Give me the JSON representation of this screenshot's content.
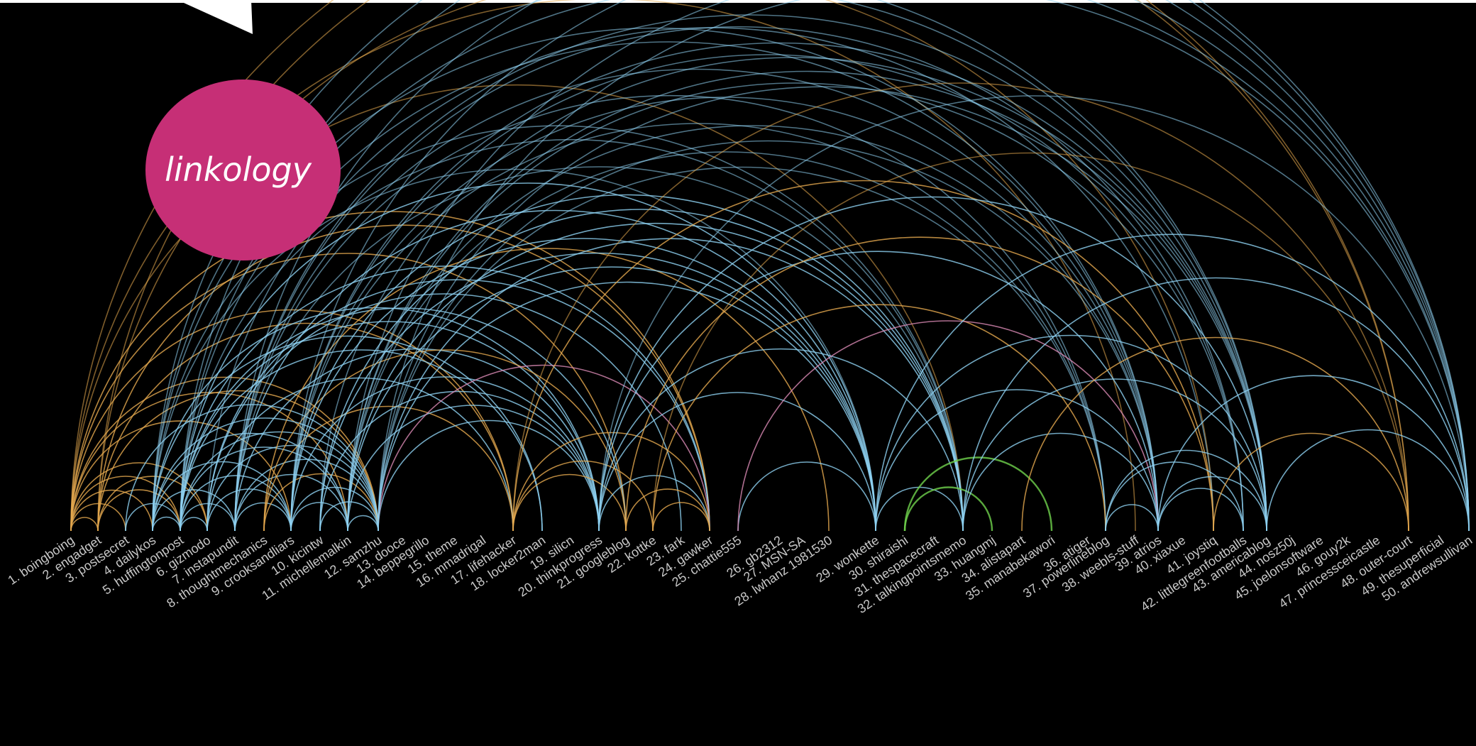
{
  "brand": {
    "name": "linkology",
    "color": "#c62f76"
  },
  "colors": {
    "background": "#000000",
    "blue": "#8fd2f2",
    "orange": "#e5a94f",
    "pink": "#d98ab4",
    "green": "#6fd24c",
    "label": "#c8c8c8"
  },
  "sites": [
    "1. boingboing",
    "2. engadget",
    "3. postsecret",
    "4. dailykos",
    "5. huffingtonpost",
    "6. gizmodo",
    "7. instapundit",
    "8. thoughtmechanics",
    "9. crooksandliars",
    "10. kicintw",
    "11. michellemalkin",
    "12. samzhu",
    "13. dooce",
    "14. beppegrillo",
    "15. theme",
    "16. mmadrigal",
    "17. lifehacker",
    "18. locker2man",
    "19. silicn",
    "20. thinkprogress",
    "21. googleblog",
    "22. kottke",
    "23. fark",
    "24. gawker",
    "25. chattie555",
    "26. gb2312",
    "27. MSN-SA",
    "28. lwhanz 1981530",
    "29. wonkette",
    "30. shiraishi",
    "31. thespacecraft",
    "32. talkingpointsmemo",
    "33. huangmj",
    "34. alistapart",
    "35. manabekawori",
    "36. atiger",
    "37. powerlineblog",
    "38. weebls-stuff",
    "39. atrios",
    "40. xiaxue",
    "41. joystiq",
    "42. littlegreenfootballs",
    "43. americablog",
    "44. nosz50j",
    "45. joelonsoftware",
    "46. gouy2k",
    "47. princessceicastle",
    "48. outer-court",
    "49. thesuperficial",
    "50. andrewsullivan"
  ],
  "links": [
    [
      1,
      2,
      "o"
    ],
    [
      1,
      3,
      "o"
    ],
    [
      1,
      4,
      "o"
    ],
    [
      1,
      5,
      "o"
    ],
    [
      1,
      6,
      "o"
    ],
    [
      1,
      9,
      "o"
    ],
    [
      1,
      11,
      "o"
    ],
    [
      1,
      12,
      "o"
    ],
    [
      1,
      17,
      "o"
    ],
    [
      1,
      21,
      "o"
    ],
    [
      1,
      24,
      "o"
    ],
    [
      1,
      32,
      "o"
    ],
    [
      1,
      38,
      "o"
    ],
    [
      1,
      48,
      "o"
    ],
    [
      2,
      5,
      "o"
    ],
    [
      2,
      6,
      "o"
    ],
    [
      2,
      12,
      "o"
    ],
    [
      2,
      17,
      "o"
    ],
    [
      2,
      24,
      "o"
    ],
    [
      2,
      41,
      "o"
    ],
    [
      2,
      48,
      "o"
    ],
    [
      3,
      12,
      "b"
    ],
    [
      3,
      5,
      "b"
    ],
    [
      4,
      5,
      "b"
    ],
    [
      4,
      7,
      "b"
    ],
    [
      4,
      9,
      "b"
    ],
    [
      4,
      11,
      "b"
    ],
    [
      4,
      12,
      "b"
    ],
    [
      4,
      18,
      "b"
    ],
    [
      4,
      20,
      "b"
    ],
    [
      4,
      29,
      "b"
    ],
    [
      4,
      32,
      "b"
    ],
    [
      4,
      39,
      "b"
    ],
    [
      4,
      43,
      "b"
    ],
    [
      4,
      50,
      "b"
    ],
    [
      5,
      6,
      "b"
    ],
    [
      5,
      7,
      "b"
    ],
    [
      5,
      9,
      "b"
    ],
    [
      5,
      11,
      "b"
    ],
    [
      5,
      12,
      "b"
    ],
    [
      5,
      18,
      "b"
    ],
    [
      5,
      20,
      "b"
    ],
    [
      5,
      21,
      "b"
    ],
    [
      5,
      24,
      "b"
    ],
    [
      5,
      29,
      "b"
    ],
    [
      5,
      32,
      "b"
    ],
    [
      5,
      39,
      "b"
    ],
    [
      5,
      43,
      "b"
    ],
    [
      5,
      50,
      "b"
    ],
    [
      6,
      9,
      "b"
    ],
    [
      6,
      12,
      "b"
    ],
    [
      6,
      17,
      "b"
    ],
    [
      6,
      24,
      "b"
    ],
    [
      6,
      41,
      "b"
    ],
    [
      6,
      23,
      "b"
    ],
    [
      7,
      9,
      "b"
    ],
    [
      7,
      11,
      "b"
    ],
    [
      7,
      12,
      "b"
    ],
    [
      7,
      20,
      "b"
    ],
    [
      7,
      29,
      "b"
    ],
    [
      7,
      32,
      "b"
    ],
    [
      7,
      37,
      "b"
    ],
    [
      7,
      39,
      "b"
    ],
    [
      7,
      42,
      "b"
    ],
    [
      7,
      43,
      "b"
    ],
    [
      7,
      50,
      "b"
    ],
    [
      8,
      12,
      "o"
    ],
    [
      8,
      17,
      "o"
    ],
    [
      8,
      21,
      "o"
    ],
    [
      8,
      28,
      "o"
    ],
    [
      9,
      11,
      "b"
    ],
    [
      9,
      12,
      "b"
    ],
    [
      9,
      20,
      "b"
    ],
    [
      9,
      29,
      "b"
    ],
    [
      9,
      32,
      "b"
    ],
    [
      9,
      37,
      "b"
    ],
    [
      9,
      39,
      "b"
    ],
    [
      9,
      42,
      "b"
    ],
    [
      9,
      43,
      "b"
    ],
    [
      9,
      50,
      "b"
    ],
    [
      10,
      12,
      "b"
    ],
    [
      10,
      20,
      "b"
    ],
    [
      10,
      29,
      "b"
    ],
    [
      10,
      32,
      "b"
    ],
    [
      10,
      43,
      "b"
    ],
    [
      11,
      12,
      "b"
    ],
    [
      11,
      20,
      "b"
    ],
    [
      11,
      29,
      "b"
    ],
    [
      11,
      32,
      "b"
    ],
    [
      11,
      37,
      "b"
    ],
    [
      11,
      39,
      "b"
    ],
    [
      11,
      42,
      "b"
    ],
    [
      11,
      43,
      "b"
    ],
    [
      11,
      50,
      "b"
    ],
    [
      12,
      20,
      "b"
    ],
    [
      12,
      24,
      "p"
    ],
    [
      12,
      29,
      "b"
    ],
    [
      12,
      32,
      "b"
    ],
    [
      12,
      37,
      "b"
    ],
    [
      12,
      39,
      "b"
    ],
    [
      12,
      43,
      "b"
    ],
    [
      12,
      50,
      "b"
    ],
    [
      17,
      21,
      "o"
    ],
    [
      17,
      24,
      "o"
    ],
    [
      17,
      22,
      "o"
    ],
    [
      17,
      41,
      "o"
    ],
    [
      17,
      48,
      "o"
    ],
    [
      20,
      29,
      "b"
    ],
    [
      20,
      32,
      "b"
    ],
    [
      20,
      39,
      "b"
    ],
    [
      20,
      43,
      "b"
    ],
    [
      20,
      50,
      "b"
    ],
    [
      20,
      24,
      "b"
    ],
    [
      21,
      24,
      "o"
    ],
    [
      21,
      41,
      "o"
    ],
    [
      22,
      24,
      "o"
    ],
    [
      22,
      37,
      "o"
    ],
    [
      22,
      48,
      "o"
    ],
    [
      25,
      29,
      "b"
    ],
    [
      25,
      39,
      "p"
    ],
    [
      29,
      32,
      "b"
    ],
    [
      29,
      39,
      "b"
    ],
    [
      29,
      43,
      "b"
    ],
    [
      29,
      50,
      "b"
    ],
    [
      30,
      35,
      "g"
    ],
    [
      30,
      33,
      "g"
    ],
    [
      32,
      39,
      "b"
    ],
    [
      32,
      43,
      "b"
    ],
    [
      32,
      50,
      "b"
    ],
    [
      34,
      48,
      "o"
    ],
    [
      37,
      39,
      "b"
    ],
    [
      37,
      42,
      "b"
    ],
    [
      37,
      43,
      "b"
    ],
    [
      39,
      43,
      "b"
    ],
    [
      39,
      50,
      "b"
    ],
    [
      39,
      42,
      "b"
    ],
    [
      41,
      48,
      "o"
    ],
    [
      43,
      50,
      "b"
    ]
  ]
}
